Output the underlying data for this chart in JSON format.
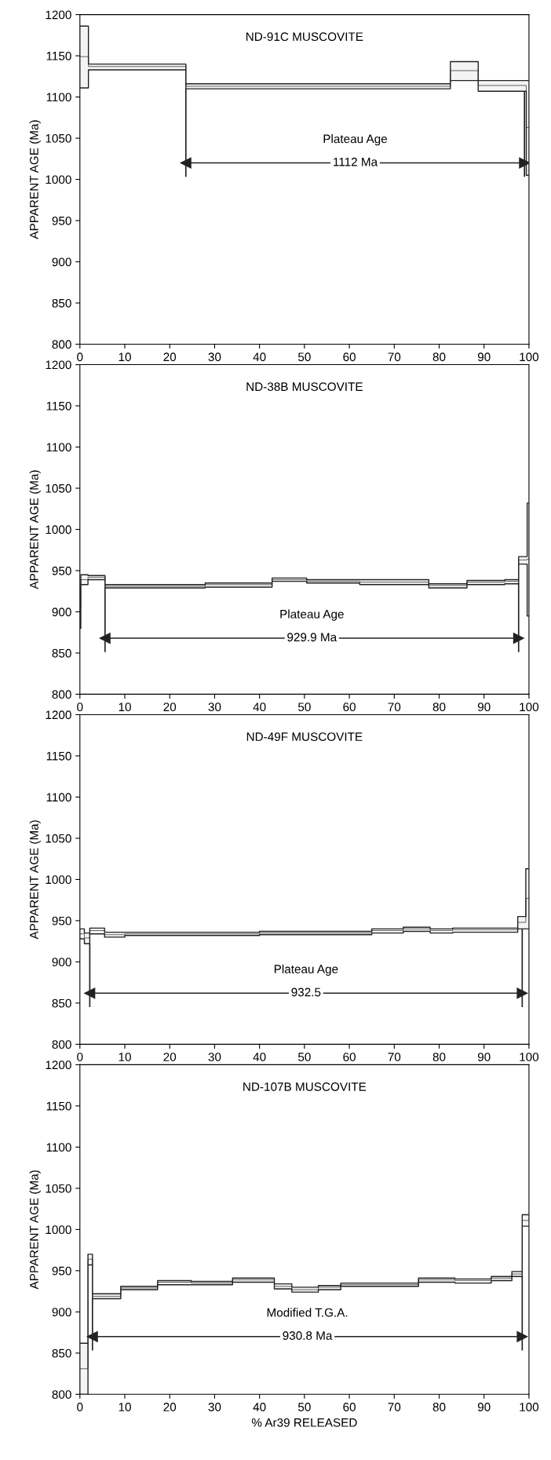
{
  "chart_data": [
    {
      "type": "line",
      "title": "ND-91C MUSCOVITE",
      "ylabel": "APPARENT AGE (Ma)",
      "xlim": [
        0,
        100
      ],
      "ylim": [
        800,
        1200
      ],
      "xticks": [
        0,
        10,
        20,
        30,
        40,
        50,
        60,
        70,
        80,
        90,
        100
      ],
      "yticks": [
        800,
        850,
        900,
        950,
        1000,
        1050,
        1100,
        1150,
        1200
      ],
      "grid": false,
      "marker": "none",
      "annotations": [
        "Plateau Age",
        "1112 Ma"
      ],
      "ref_lines": [
        {
          "axis": "x",
          "value": 23.6
        },
        {
          "axis": "x",
          "value": 99.0
        }
      ],
      "series": [
        {
          "color": "#222222",
          "x": [
            0,
            1.9,
            1.9,
            23.6,
            23.6,
            82.5,
            82.5,
            88.7,
            88.7,
            99.4,
            99.4,
            100
          ],
          "values": [
            1149,
            1149,
            1137,
            1137,
            1113,
            1113,
            1132,
            1132,
            1114,
            1114,
            1063,
            1063
          ],
          "lower": [
            1111,
            1111,
            1133,
            1133,
            1110,
            1110,
            1120,
            1120,
            1107,
            1107,
            1005,
            1005
          ],
          "upper": [
            1186,
            1186,
            1140,
            1140,
            1116,
            1116,
            1143,
            1143,
            1120,
            1120,
            1120,
            1120
          ]
        },
        {
          "color": "#222222",
          "marker": "triangle",
          "x": [
            23.6,
            99.0
          ],
          "values": [
            1020,
            1020
          ]
        }
      ]
    },
    {
      "type": "line",
      "title": "ND-38B MUSCOVITE",
      "ylabel": "APPARENT AGE (Ma)",
      "xlim": [
        0,
        100
      ],
      "ylim": [
        800,
        1200
      ],
      "xticks": [
        0,
        10,
        20,
        30,
        40,
        50,
        60,
        70,
        80,
        90,
        100
      ],
      "yticks": [
        800,
        850,
        900,
        950,
        1000,
        1050,
        1100,
        1150,
        1200
      ],
      "grid": false,
      "marker": "none",
      "annotations": [
        "Plateau Age",
        "929.9 Ma"
      ],
      "ref_lines": [
        {
          "axis": "x",
          "value": 5.6
        },
        {
          "axis": "x",
          "value": 97.7
        }
      ],
      "series": [
        {
          "color": "#222222",
          "x": [
            0,
            0.2,
            0.2,
            1.8,
            1.8,
            5.6,
            5.6,
            27.9,
            27.9,
            42.8,
            42.8,
            50.5,
            50.5,
            62.3,
            62.3,
            77.7,
            77.7,
            86.2,
            86.2,
            94.6,
            94.6,
            97.7,
            97.7,
            99.6,
            99.6,
            100
          ],
          "values": [
            905,
            905,
            939,
            939,
            942,
            942,
            931,
            931,
            933,
            933,
            939,
            939,
            937,
            937,
            936,
            936,
            932,
            932,
            936,
            936,
            937,
            937,
            963,
            963,
            964,
            964
          ],
          "lower": [
            880,
            880,
            933,
            933,
            939,
            939,
            929,
            929,
            930,
            930,
            937,
            937,
            935,
            935,
            933,
            933,
            929,
            929,
            933,
            933,
            934,
            934,
            958,
            958,
            895,
            895
          ],
          "upper": [
            930,
            930,
            945,
            945,
            944,
            944,
            933,
            933,
            935,
            935,
            941,
            941,
            939,
            939,
            939,
            939,
            934,
            934,
            938,
            938,
            939,
            939,
            967,
            967,
            1032,
            1032
          ]
        },
        {
          "color": "#222222",
          "marker": "triangle",
          "x": [
            5.6,
            97.7
          ],
          "values": [
            868,
            868
          ]
        }
      ]
    },
    {
      "type": "line",
      "title": "ND-49F MUSCOVITE",
      "ylabel": "APPARENT AGE (Ma)",
      "xlim": [
        0,
        100
      ],
      "ylim": [
        800,
        1200
      ],
      "xticks": [
        0,
        10,
        20,
        30,
        40,
        50,
        60,
        70,
        80,
        90,
        100
      ],
      "yticks": [
        800,
        850,
        900,
        950,
        1000,
        1050,
        1100,
        1150,
        1200
      ],
      "grid": false,
      "marker": "none",
      "annotations": [
        "Plateau Age",
        "932.5"
      ],
      "ref_lines": [
        {
          "axis": "x",
          "value": 2.2
        },
        {
          "axis": "x",
          "value": 98.5
        }
      ],
      "series": [
        {
          "color": "#222222",
          "x": [
            0,
            1,
            1,
            2.2,
            2.2,
            5.5,
            5.5,
            10,
            10,
            40,
            40,
            65,
            65,
            72,
            72,
            78,
            78,
            83,
            83,
            97.5,
            97.5,
            99.3,
            99.3,
            100
          ],
          "values": [
            934,
            934,
            929,
            929,
            938,
            938,
            933,
            933,
            934,
            934,
            935,
            935,
            938,
            938,
            940,
            940,
            938,
            938,
            939,
            939,
            948,
            948,
            977,
            977
          ],
          "lower": [
            928,
            928,
            922,
            922,
            934,
            934,
            930,
            930,
            932,
            932,
            933,
            933,
            935,
            935,
            937,
            937,
            935,
            935,
            936,
            936,
            940,
            940,
            940,
            940
          ],
          "upper": [
            940,
            940,
            935,
            935,
            941,
            941,
            936,
            936,
            936,
            936,
            937,
            937,
            940,
            940,
            942,
            942,
            940,
            940,
            941,
            941,
            955,
            955,
            1013,
            1013
          ]
        },
        {
          "color": "#222222",
          "marker": "triangle",
          "x": [
            2.2,
            98.5
          ],
          "values": [
            862,
            862
          ]
        }
      ]
    },
    {
      "type": "line",
      "title": "ND-107B MUSCOVITE",
      "ylabel": "APPARENT AGE (Ma)",
      "xlabel": "% Ar39 RELEASED",
      "xlim": [
        0,
        100
      ],
      "ylim": [
        800,
        1200
      ],
      "xticks": [
        0,
        10,
        20,
        30,
        40,
        50,
        60,
        70,
        80,
        90,
        100
      ],
      "yticks": [
        800,
        850,
        900,
        950,
        1000,
        1050,
        1100,
        1150,
        1200
      ],
      "grid": false,
      "marker": "none",
      "annotations": [
        "Modified T.G.A.",
        "930.8 Ma"
      ],
      "ref_lines": [
        {
          "axis": "x",
          "value": 2.8
        },
        {
          "axis": "x",
          "value": 98.5
        }
      ],
      "series": [
        {
          "color": "#222222",
          "x": [
            0,
            1.8,
            1.8,
            2.8,
            2.8,
            9.1,
            9.1,
            17.3,
            17.3,
            24.8,
            24.8,
            34,
            34,
            43.3,
            43.3,
            47.2,
            47.2,
            53.1,
            53.1,
            58.1,
            58.1,
            65.8,
            65.8,
            75.4,
            75.4,
            83.5,
            83.5,
            91.6,
            91.6,
            96.2,
            96.2,
            98.5,
            98.5,
            100
          ],
          "values": [
            831,
            831,
            964,
            964,
            919,
            919,
            929,
            929,
            936,
            936,
            935,
            935,
            939,
            939,
            931,
            931,
            927,
            927,
            930,
            930,
            933,
            933,
            933,
            933,
            939,
            939,
            938,
            938,
            941,
            941,
            946,
            946,
            1011,
            1011
          ],
          "lower": [
            800,
            800,
            957,
            957,
            916,
            916,
            927,
            927,
            933,
            933,
            933,
            933,
            936,
            936,
            928,
            928,
            924,
            924,
            927,
            927,
            931,
            931,
            931,
            931,
            936,
            936,
            935,
            935,
            938,
            938,
            943,
            943,
            1004,
            1004
          ],
          "upper": [
            862,
            862,
            970,
            970,
            922,
            922,
            931,
            931,
            938,
            938,
            937,
            937,
            941,
            941,
            934,
            934,
            930,
            930,
            932,
            932,
            935,
            935,
            935,
            935,
            941,
            941,
            940,
            940,
            943,
            943,
            949,
            949,
            1018,
            1018
          ]
        },
        {
          "color": "#222222",
          "marker": "triangle",
          "x": [
            2.8,
            98.5
          ],
          "values": [
            870,
            870
          ]
        }
      ]
    }
  ]
}
